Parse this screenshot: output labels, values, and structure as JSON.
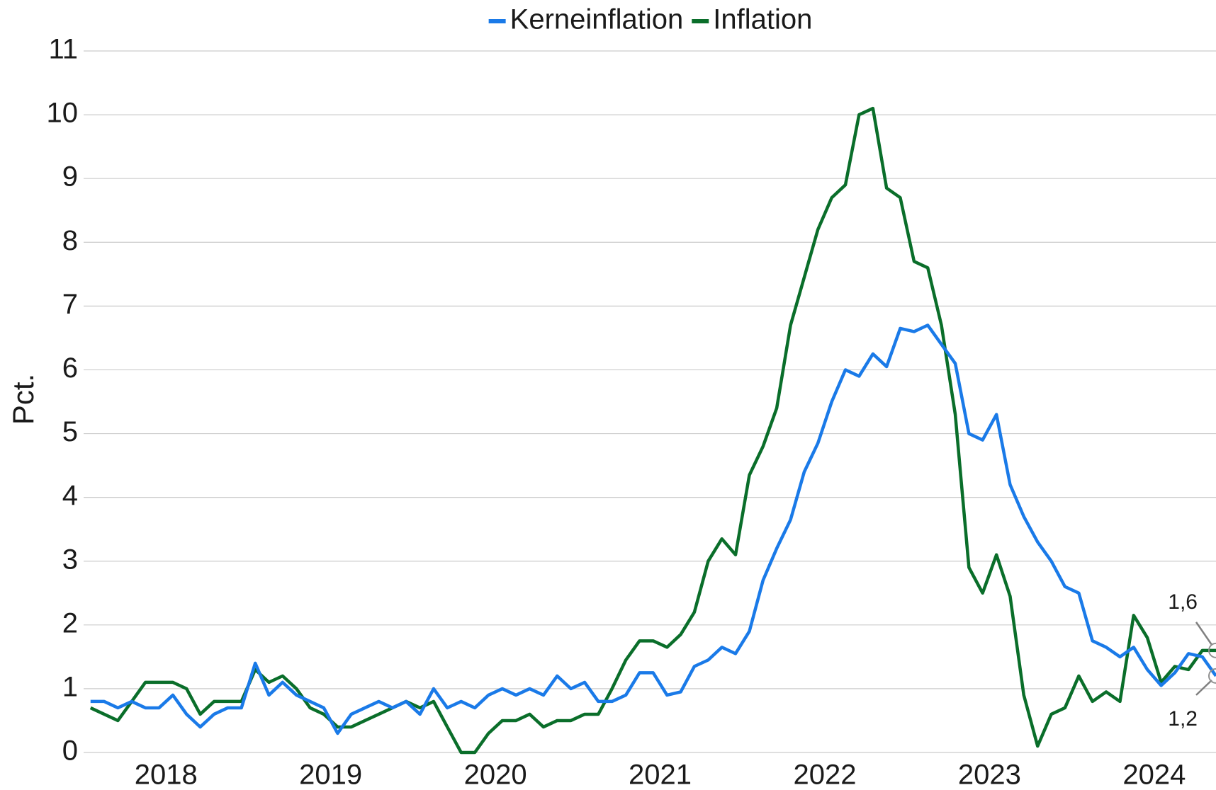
{
  "chart_data": {
    "type": "line",
    "ylabel": "Pct.",
    "x": [
      2018.042,
      2018.125,
      2018.208,
      2018.292,
      2018.375,
      2018.458,
      2018.542,
      2018.625,
      2018.708,
      2018.792,
      2018.875,
      2018.958,
      2019.042,
      2019.125,
      2019.208,
      2019.292,
      2019.375,
      2019.458,
      2019.542,
      2019.625,
      2019.708,
      2019.792,
      2019.875,
      2019.958,
      2020.042,
      2020.125,
      2020.208,
      2020.292,
      2020.375,
      2020.458,
      2020.542,
      2020.625,
      2020.708,
      2020.792,
      2020.875,
      2020.958,
      2021.042,
      2021.125,
      2021.208,
      2021.292,
      2021.375,
      2021.458,
      2021.542,
      2021.625,
      2021.708,
      2021.792,
      2021.875,
      2021.958,
      2022.042,
      2022.125,
      2022.208,
      2022.292,
      2022.375,
      2022.458,
      2022.542,
      2022.625,
      2022.708,
      2022.792,
      2022.875,
      2022.958,
      2023.042,
      2023.125,
      2023.208,
      2023.292,
      2023.375,
      2023.458,
      2023.542,
      2023.625,
      2023.708,
      2023.792,
      2023.875,
      2023.958,
      2024.042,
      2024.125,
      2024.208,
      2024.292,
      2024.375,
      2024.458,
      2024.542,
      2024.625,
      2024.708,
      2024.792,
      2024.875
    ],
    "series": [
      {
        "name": "Kerneinflation",
        "color": "#1a7ae8",
        "values": [
          0.8,
          0.8,
          0.7,
          0.8,
          0.7,
          0.7,
          0.9,
          0.6,
          0.4,
          0.6,
          0.7,
          0.7,
          1.4,
          0.9,
          1.1,
          0.9,
          0.8,
          0.7,
          0.3,
          0.6,
          0.7,
          0.8,
          0.7,
          0.8,
          0.6,
          1.0,
          0.7,
          0.8,
          0.7,
          0.9,
          1.0,
          0.9,
          1.0,
          0.9,
          1.2,
          1.0,
          1.1,
          0.8,
          0.8,
          0.9,
          1.25,
          1.25,
          0.9,
          0.95,
          1.35,
          1.45,
          1.65,
          1.55,
          1.9,
          2.7,
          3.2,
          3.65,
          4.4,
          4.85,
          5.5,
          6.0,
          5.9,
          6.25,
          6.05,
          6.65,
          6.6,
          6.7,
          6.4,
          6.1,
          5.0,
          4.9,
          5.3,
          4.2,
          3.7,
          3.3,
          3.0,
          2.6,
          2.5,
          1.75,
          1.65,
          1.5,
          1.65,
          1.3,
          1.05,
          1.25,
          1.55,
          1.5,
          1.2
        ]
      },
      {
        "name": "Inflation",
        "color": "#0a6e2a",
        "values": [
          0.7,
          0.6,
          0.5,
          0.8,
          1.1,
          1.1,
          1.1,
          1.0,
          0.6,
          0.8,
          0.8,
          0.8,
          1.3,
          1.1,
          1.2,
          1.0,
          0.7,
          0.6,
          0.4,
          0.4,
          0.5,
          0.6,
          0.7,
          0.8,
          0.7,
          0.8,
          0.4,
          0.0,
          0.0,
          0.3,
          0.5,
          0.5,
          0.6,
          0.4,
          0.5,
          0.5,
          0.6,
          0.6,
          1.0,
          1.45,
          1.75,
          1.75,
          1.65,
          1.85,
          2.2,
          3.0,
          3.35,
          3.1,
          4.35,
          4.8,
          5.4,
          6.7,
          7.45,
          8.2,
          8.7,
          8.9,
          10.0,
          10.1,
          8.85,
          8.7,
          7.7,
          7.6,
          6.7,
          5.3,
          2.9,
          2.5,
          3.1,
          2.45,
          0.9,
          0.1,
          0.6,
          0.7,
          1.2,
          0.8,
          0.95,
          0.8,
          2.15,
          1.8,
          1.1,
          1.35,
          1.3,
          1.6,
          1.6
        ]
      }
    ],
    "annotations": [
      {
        "text": "1,6",
        "value": 1.6
      },
      {
        "text": "1,2",
        "value": 1.2
      }
    ],
    "xlim": [
      2018,
      2024.875
    ],
    "xticks": [
      {
        "value": 2018.5,
        "label": "2018"
      },
      {
        "value": 2019.5,
        "label": "2019"
      },
      {
        "value": 2020.5,
        "label": "2020"
      },
      {
        "value": 2021.5,
        "label": "2021"
      },
      {
        "value": 2022.5,
        "label": "2022"
      },
      {
        "value": 2023.5,
        "label": "2023"
      },
      {
        "value": 2024.5,
        "label": "2024"
      }
    ],
    "ylim": [
      0,
      11
    ],
    "yticks": [
      0,
      1,
      2,
      3,
      4,
      5,
      6,
      7,
      8,
      9,
      10,
      11
    ],
    "grid": true,
    "legend": "top"
  }
}
